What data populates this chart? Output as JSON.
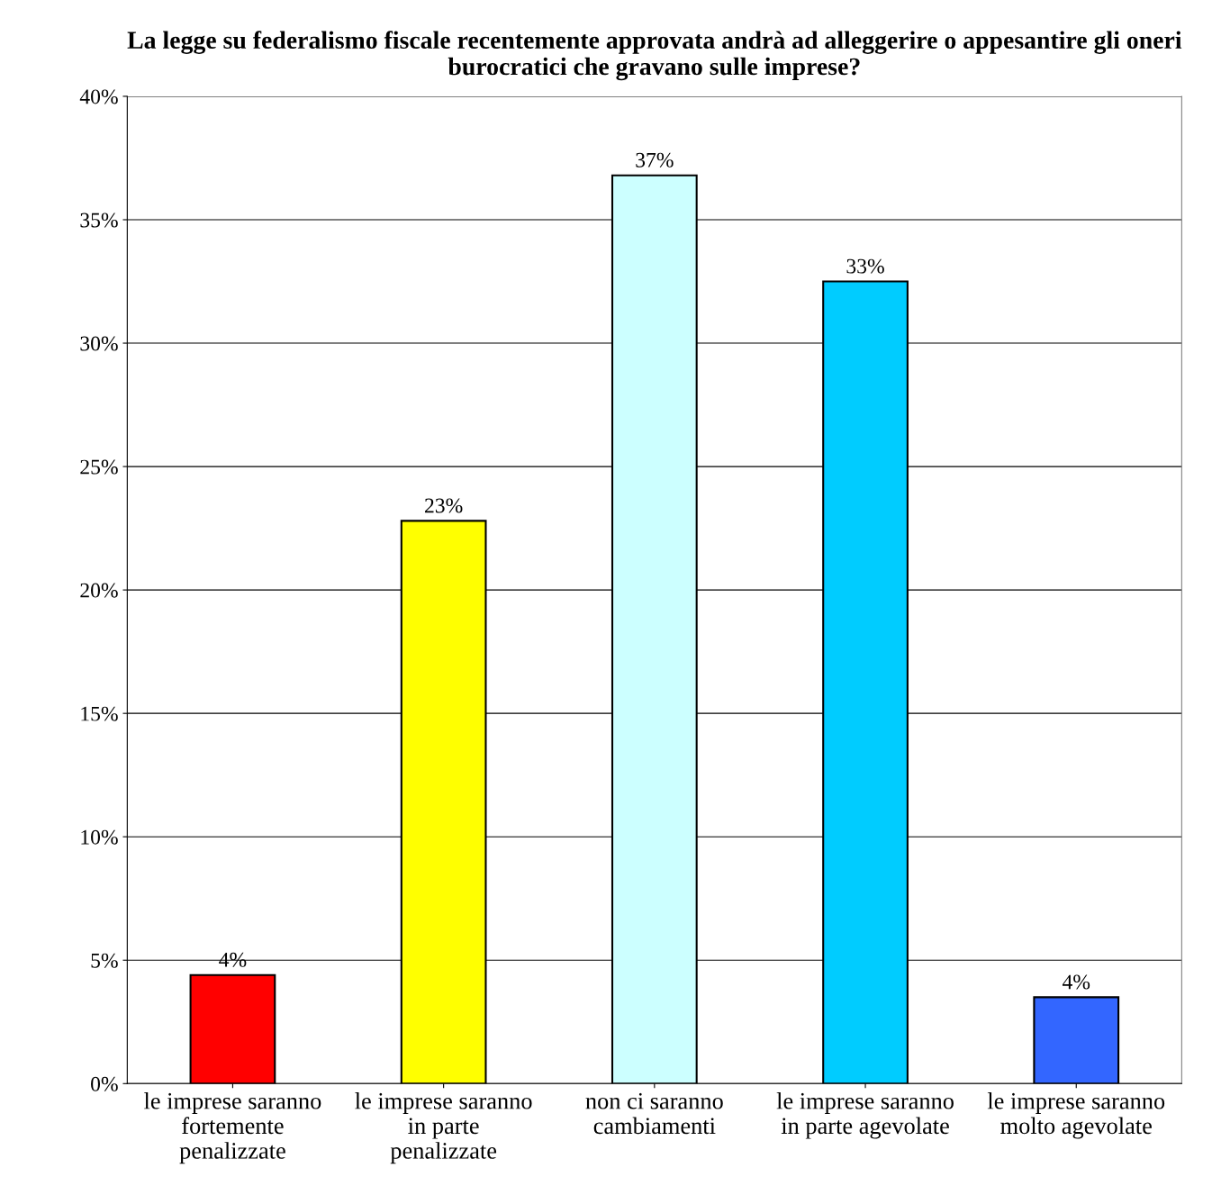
{
  "chart_data": {
    "type": "bar",
    "title": "La legge su federalismo fiscale recentemente approvata andrà ad alleggerire o appesantire gli oneri burocratici che gravano sulle imprese?",
    "categories": [
      "le imprese saranno\nfortemente\npenalizzate",
      "le imprese saranno\nin parte\npenalizzate",
      "non ci saranno\ncambiamenti",
      "le imprese saranno\nin parte agevolate",
      "le imprese saranno\nmolto agevolate"
    ],
    "values": [
      4.4,
      22.8,
      36.8,
      32.5,
      3.5
    ],
    "colors": [
      "#ff0000",
      "#ffff00",
      "#ccffff",
      "#00ccff",
      "#3366ff"
    ],
    "value_labels": [
      "4%",
      "23%",
      "37%",
      "33%",
      "4%"
    ],
    "ylim": [
      0,
      40
    ],
    "yticks": [
      {
        "value": 0,
        "label": "0%"
      },
      {
        "value": 5,
        "label": "5%"
      },
      {
        "value": 10,
        "label": "10%"
      },
      {
        "value": 15,
        "label": "15%"
      },
      {
        "value": 20,
        "label": "20%"
      },
      {
        "value": 25,
        "label": "25%"
      },
      {
        "value": 30,
        "label": "30%"
      },
      {
        "value": 35,
        "label": "35%"
      },
      {
        "value": 40,
        "label": "40%"
      }
    ],
    "grid": "y",
    "legend": false
  }
}
